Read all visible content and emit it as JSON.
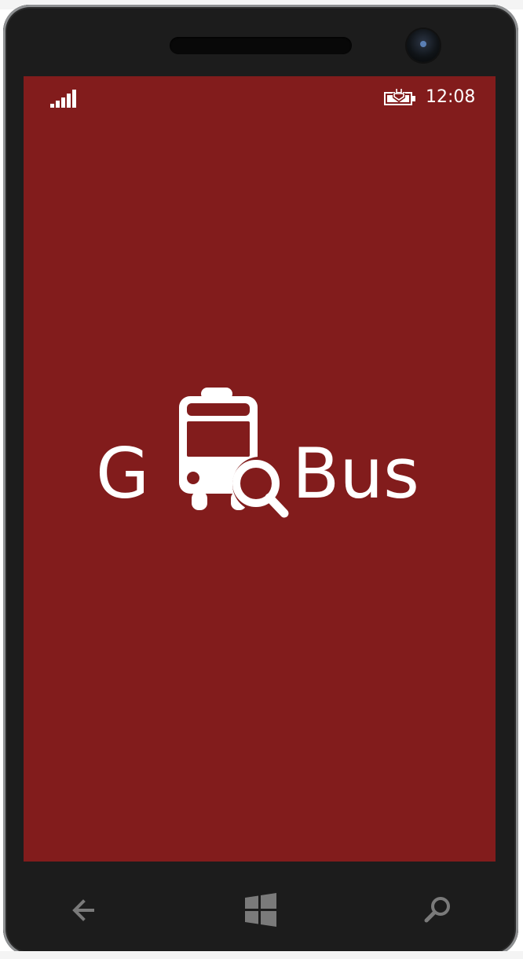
{
  "status_bar": {
    "time": "12:08",
    "signal_icon": "signal-strength-icon",
    "battery_icon": "battery-charging-icon"
  },
  "logo": {
    "text_left": "G",
    "text_right": "Bus",
    "full_name": "GoBus",
    "icon": "bus-search-icon"
  },
  "nav": {
    "back_icon": "back-arrow-icon",
    "start_icon": "windows-logo-icon",
    "search_icon": "search-icon"
  },
  "colors": {
    "screen_background": "#821c1c",
    "foreground": "#ffffff",
    "bezel": "#1c1c1c"
  }
}
